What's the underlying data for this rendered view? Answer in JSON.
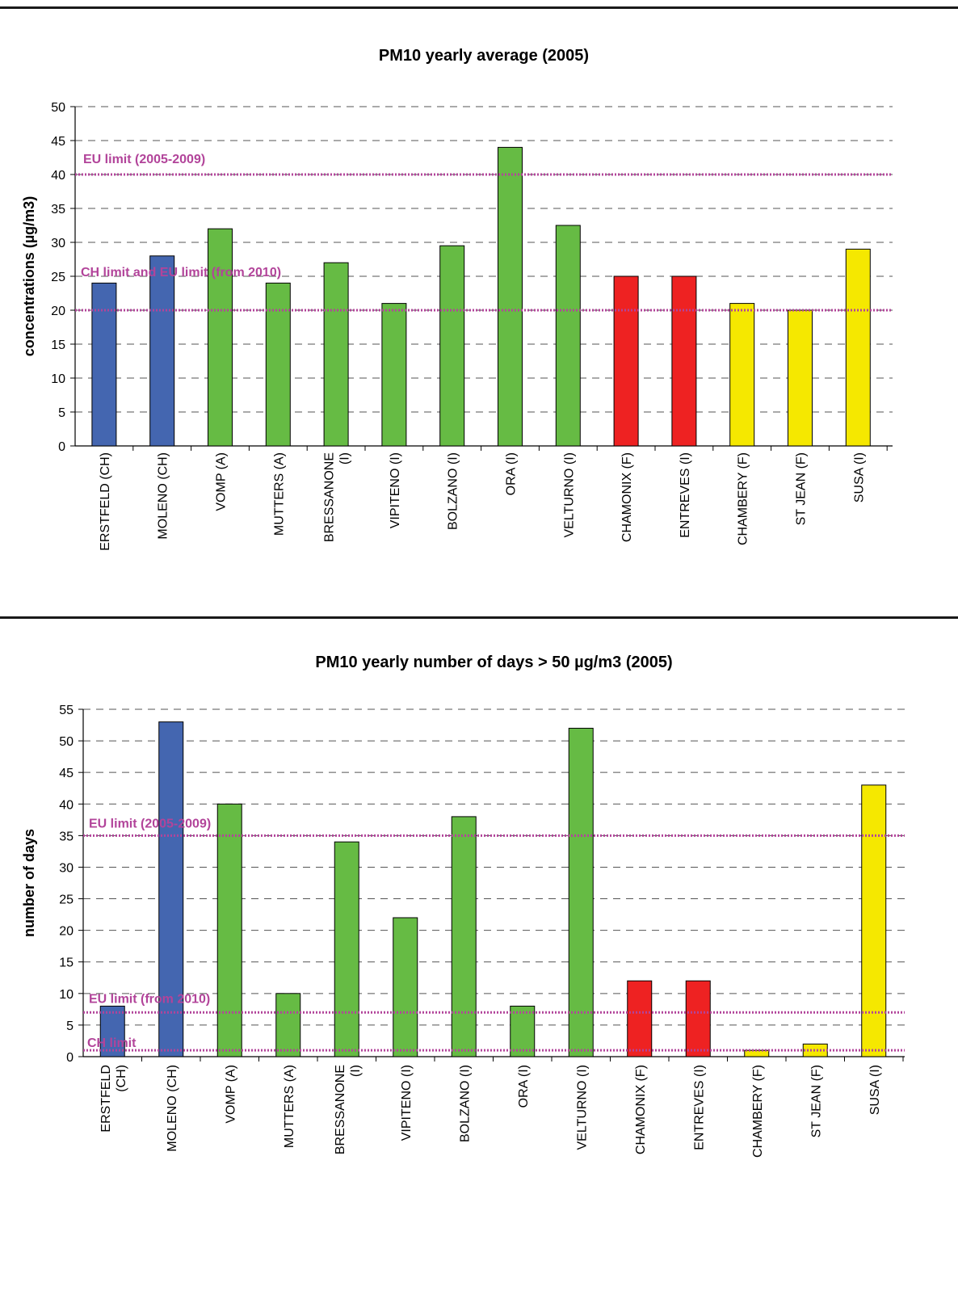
{
  "colors": {
    "CH": "#4466b0",
    "A": "#66bb44",
    "I_green": "#66bb44",
    "F_red": "#ee2222",
    "yellow": "#f5e800",
    "limit": "#b2449a",
    "grid": "#555555"
  },
  "chart_data": [
    {
      "type": "bar",
      "title": "PM10 yearly average (2005)",
      "xlabel": "",
      "ylabel": "concentrations (µg/m3)",
      "ylim": [
        0,
        50
      ],
      "yticks": [
        0,
        5,
        10,
        15,
        20,
        25,
        30,
        35,
        40,
        45,
        50
      ],
      "grid": true,
      "categories": [
        {
          "label": [
            "ERSTFELD (CH)"
          ],
          "value": 24,
          "color": "#4466b0"
        },
        {
          "label": [
            "MOLENO (CH)"
          ],
          "value": 28,
          "color": "#4466b0"
        },
        {
          "label": [
            "VOMP (A)"
          ],
          "value": 32,
          "color": "#66bb44"
        },
        {
          "label": [
            "MUTTERS (A)"
          ],
          "value": 24,
          "color": "#66bb44"
        },
        {
          "label": [
            "BRESSANONE",
            "(I)"
          ],
          "value": 27,
          "color": "#66bb44"
        },
        {
          "label": [
            "VIPITENO (I)"
          ],
          "value": 21,
          "color": "#66bb44"
        },
        {
          "label": [
            "BOLZANO (I)"
          ],
          "value": 29.5,
          "color": "#66bb44"
        },
        {
          "label": [
            "ORA (I)"
          ],
          "value": 44,
          "color": "#66bb44"
        },
        {
          "label": [
            "VELTURNO (I)"
          ],
          "value": 32.5,
          "color": "#66bb44"
        },
        {
          "label": [
            "CHAMONIX (F)"
          ],
          "value": 25,
          "color": "#ee2222"
        },
        {
          "label": [
            "ENTREVES (I)"
          ],
          "value": 25,
          "color": "#ee2222"
        },
        {
          "label": [
            "CHAMBERY (F)"
          ],
          "value": 21,
          "color": "#f5e800"
        },
        {
          "label": [
            "ST JEAN (F)"
          ],
          "value": 20,
          "color": "#f5e800"
        },
        {
          "label": [
            "SUSA (I)"
          ],
          "value": 29,
          "color": "#f5e800"
        }
      ],
      "limits": [
        {
          "label": "EU limit (2005-2009)",
          "value": 40
        },
        {
          "label": "CH limit and EU limit (from 2010)",
          "value": 20
        }
      ]
    },
    {
      "type": "bar",
      "title": "PM10 yearly number of days > 50 µg/m3 (2005)",
      "xlabel": "",
      "ylabel": "number of days",
      "ylim": [
        0,
        55
      ],
      "yticks": [
        0,
        5,
        10,
        15,
        20,
        25,
        30,
        35,
        40,
        45,
        50,
        55
      ],
      "grid": true,
      "categories": [
        {
          "label": [
            "ERSTFELD",
            "(CH)"
          ],
          "value": 8,
          "color": "#4466b0"
        },
        {
          "label": [
            "MOLENO (CH)"
          ],
          "value": 53,
          "color": "#4466b0"
        },
        {
          "label": [
            "VOMP (A)"
          ],
          "value": 40,
          "color": "#66bb44"
        },
        {
          "label": [
            "MUTTERS (A)"
          ],
          "value": 10,
          "color": "#66bb44"
        },
        {
          "label": [
            "BRESSANONE",
            "(I)"
          ],
          "value": 34,
          "color": "#66bb44"
        },
        {
          "label": [
            "VIPITENO (I)"
          ],
          "value": 22,
          "color": "#66bb44"
        },
        {
          "label": [
            "BOLZANO (I)"
          ],
          "value": 38,
          "color": "#66bb44"
        },
        {
          "label": [
            "ORA (I)"
          ],
          "value": 8,
          "color": "#66bb44"
        },
        {
          "label": [
            "VELTURNO (I)"
          ],
          "value": 52,
          "color": "#66bb44"
        },
        {
          "label": [
            "CHAMONIX (F)"
          ],
          "value": 12,
          "color": "#ee2222"
        },
        {
          "label": [
            "ENTREVES (I)"
          ],
          "value": 12,
          "color": "#ee2222"
        },
        {
          "label": [
            "CHAMBERY (F)"
          ],
          "value": 1,
          "color": "#f5e800"
        },
        {
          "label": [
            "ST JEAN (F)"
          ],
          "value": 2,
          "color": "#f5e800"
        },
        {
          "label": [
            "SUSA (I)"
          ],
          "value": 43,
          "color": "#f5e800"
        }
      ],
      "limits": [
        {
          "label": "EU limit (2005-2009)",
          "value": 35
        },
        {
          "label": "EU limit (from 2010)",
          "value": 7
        },
        {
          "label": "CH limit",
          "value": 1
        }
      ]
    }
  ]
}
